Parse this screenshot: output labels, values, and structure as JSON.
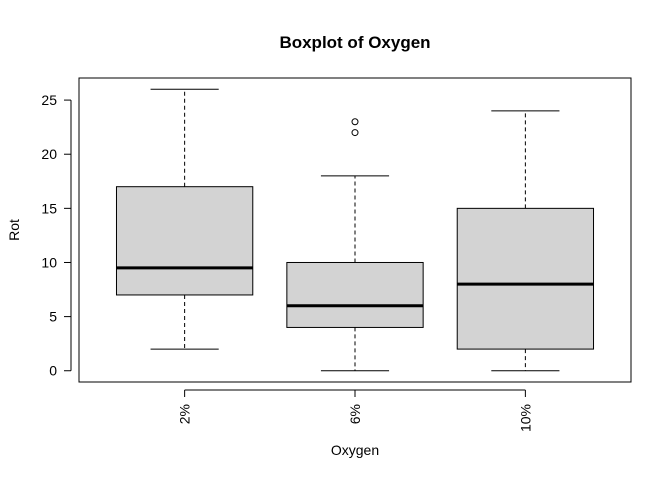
{
  "chart_data": {
    "type": "boxplot",
    "title": "Boxplot of Oxygen",
    "xlabel": "Oxygen",
    "ylabel": "Rot",
    "categories": [
      "2%",
      "6%",
      "10%"
    ],
    "boxes": [
      {
        "category": "2%",
        "whisker_low": 2,
        "q1": 7,
        "median": 9.5,
        "q3": 17,
        "whisker_high": 26,
        "outliers": []
      },
      {
        "category": "6%",
        "whisker_low": 0,
        "q1": 4,
        "median": 6,
        "q3": 10,
        "whisker_high": 18,
        "outliers": [
          22,
          23
        ]
      },
      {
        "category": "10%",
        "whisker_low": 0,
        "q1": 2,
        "median": 8,
        "q3": 15,
        "whisker_high": 24,
        "outliers": []
      }
    ],
    "yticks": [
      0,
      5,
      10,
      15,
      20,
      25
    ],
    "ylim": [
      -1.04,
      27.04
    ],
    "box_fill": "#d3d3d3",
    "line_color": "#000000",
    "grid": false
  }
}
